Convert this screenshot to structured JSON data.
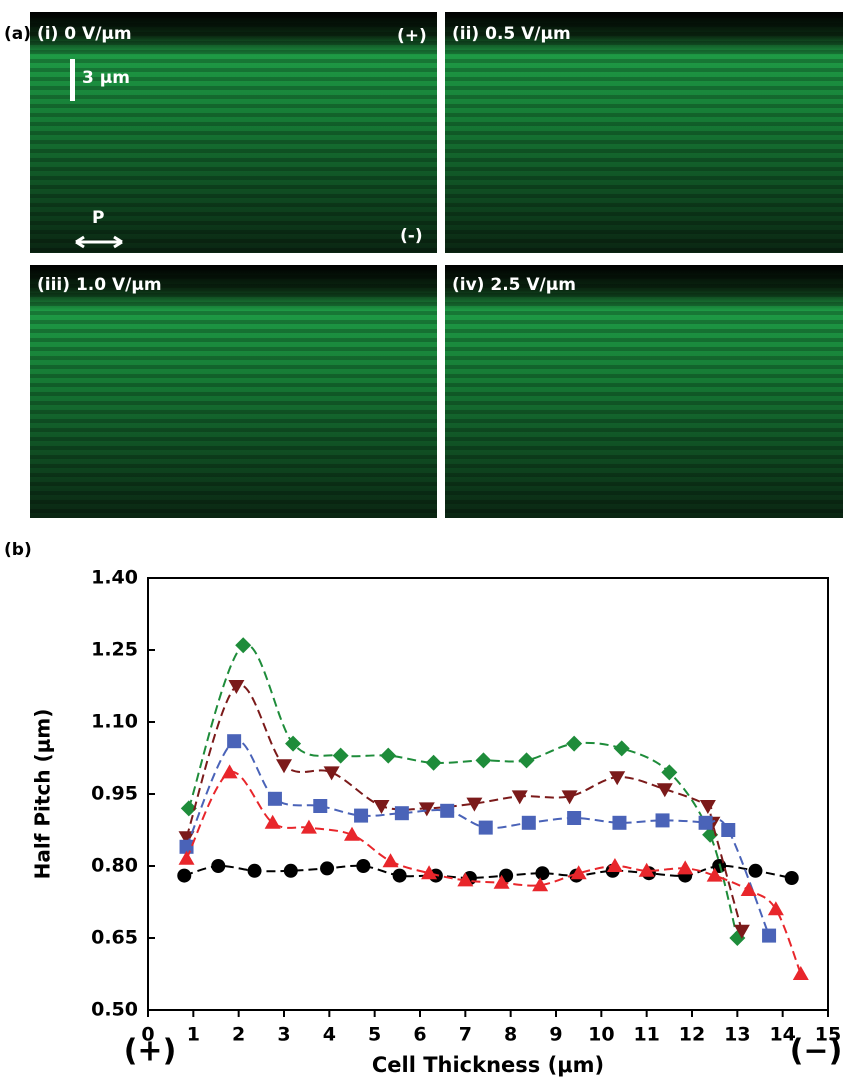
{
  "micrographs": {
    "label": "(a)",
    "panels": [
      {
        "label": "(i) 0 V/μm",
        "top_sign": "(+)",
        "bottom_sign": "(-)",
        "scale_bar": "3 μm",
        "polarizer": "P"
      },
      {
        "label": "(ii) 0.5 V/μm"
      },
      {
        "label": "(iii) 1.0 V/μm"
      },
      {
        "label": "(iv) 2.5 V/μm"
      }
    ]
  },
  "chart_data": {
    "type": "scatter",
    "panel_label": "(b)",
    "xlabel": "Cell Thickness (μm)",
    "ylabel": "Half Pitch (μm)",
    "xlim": [
      0,
      15
    ],
    "xticks": [
      0,
      1,
      2,
      3,
      4,
      5,
      6,
      7,
      8,
      9,
      10,
      11,
      12,
      13,
      14,
      15
    ],
    "ylim": [
      0.5,
      1.4
    ],
    "yticks": [
      {
        "value": 0.5,
        "label": "0.50"
      },
      0.65,
      {
        "value": 0.8,
        "label": "0.80"
      },
      0.95,
      {
        "value": 1.1,
        "label": "1.10"
      },
      1.25,
      {
        "value": 1.4,
        "label": "1.40"
      }
    ],
    "annotations": [
      "(+)",
      "(−)"
    ],
    "series": [
      {
        "color": "#000000",
        "marker": "circle",
        "x": [
          0.8,
          1.55,
          2.35,
          3.15,
          3.95,
          4.75,
          5.55,
          6.35,
          7.1,
          7.9,
          8.7,
          9.45,
          10.25,
          11.05,
          11.85,
          12.6,
          13.4,
          14.2
        ],
        "values": [
          0.78,
          0.8,
          0.79,
          0.79,
          0.795,
          0.8,
          0.78,
          0.78,
          0.775,
          0.78,
          0.785,
          0.78,
          0.79,
          0.785,
          0.78,
          0.8,
          0.79,
          0.775
        ]
      },
      {
        "color": "#1e8c3a",
        "marker": "diamond",
        "x": [
          0.9,
          2.1,
          3.2,
          4.25,
          5.3,
          6.3,
          7.4,
          8.35,
          9.4,
          10.45,
          11.5,
          12.4,
          13.0
        ],
        "values": [
          0.92,
          1.26,
          1.055,
          1.03,
          1.03,
          1.015,
          1.02,
          1.02,
          1.055,
          1.045,
          0.995,
          0.865,
          0.65
        ]
      },
      {
        "color": "#7b1a1a",
        "marker": "triangle-down",
        "x": [
          0.85,
          1.95,
          3.0,
          4.05,
          5.15,
          6.15,
          7.2,
          8.2,
          9.3,
          10.35,
          11.4,
          12.35,
          12.45,
          13.1
        ],
        "values": [
          0.86,
          1.175,
          1.01,
          0.995,
          0.925,
          0.92,
          0.93,
          0.945,
          0.945,
          0.985,
          0.96,
          0.925,
          0.89,
          0.665
        ]
      },
      {
        "color": "#4a63b8",
        "marker": "square",
        "x": [
          0.85,
          1.9,
          2.8,
          3.8,
          4.7,
          5.6,
          6.6,
          7.45,
          8.4,
          9.4,
          10.4,
          11.35,
          12.3,
          12.8,
          13.7
        ],
        "values": [
          0.84,
          1.06,
          0.94,
          0.925,
          0.905,
          0.91,
          0.915,
          0.88,
          0.89,
          0.9,
          0.89,
          0.895,
          0.89,
          0.875,
          0.655
        ]
      },
      {
        "color": "#e8262b",
        "marker": "triangle-up",
        "x": [
          0.85,
          1.8,
          2.75,
          3.55,
          4.5,
          5.35,
          6.2,
          7.0,
          7.8,
          8.65,
          9.5,
          10.3,
          11.0,
          11.85,
          12.5,
          13.25,
          13.85,
          14.4
        ],
        "values": [
          0.815,
          0.995,
          0.89,
          0.88,
          0.865,
          0.81,
          0.785,
          0.77,
          0.765,
          0.76,
          0.785,
          0.8,
          0.79,
          0.795,
          0.78,
          0.75,
          0.71,
          0.575
        ]
      }
    ]
  }
}
